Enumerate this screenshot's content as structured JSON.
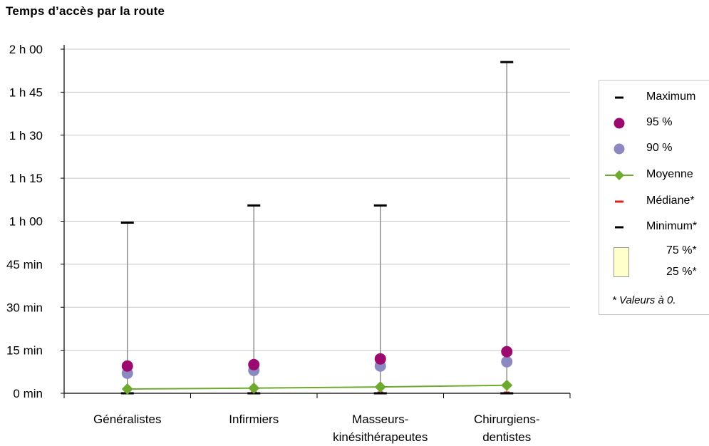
{
  "chart_data": {
    "type": "boxplot-summary",
    "title": "Temps d’accès par la route",
    "y_tick_labels": [
      "0 min",
      "15 min",
      "30 min",
      "45 min",
      "1 h 00",
      "1 h 15",
      "1 h 30",
      "1 h 45",
      "2 h 00"
    ],
    "y_tick_values": [
      0,
      15,
      30,
      45,
      60,
      75,
      90,
      105,
      120
    ],
    "ylim": [
      0,
      120
    ],
    "grid": true,
    "legend_position": "right",
    "categories": [
      "Généralistes",
      "Infirmiers",
      "Masseurs-kinésithérapeutes",
      "Chirurgiens-dentistes"
    ],
    "category_lines": [
      [
        "Généralistes"
      ],
      [
        "Infirmiers"
      ],
      [
        "Masseurs-",
        "kinésithérapeutes"
      ],
      [
        "Chirurgiens-",
        "dentistes"
      ]
    ],
    "series": [
      {
        "name": "Maximum",
        "values": [
          59.5,
          65.5,
          65.5,
          115.5
        ]
      },
      {
        "name": "95 %",
        "values": [
          9.5,
          10.0,
          12.0,
          14.5
        ]
      },
      {
        "name": "90 %",
        "values": [
          7.0,
          8.0,
          9.5,
          11.0
        ]
      },
      {
        "name": "Moyenne",
        "values": [
          1.5,
          1.8,
          2.2,
          2.8
        ]
      },
      {
        "name": "Médiane*",
        "values": [
          0,
          0,
          0,
          0
        ]
      },
      {
        "name": "Minimum*",
        "values": [
          0,
          0,
          0,
          0
        ]
      }
    ],
    "legend": {
      "items": [
        "Maximum",
        "95 %",
        "90 %",
        "Moyenne",
        "Médiane*",
        "Minimum*"
      ],
      "box_top_label": "75 %*",
      "box_bottom_label": "25 %*",
      "note": "* Valeurs à 0."
    },
    "colors": {
      "maximum": "#000000",
      "p95": "#9b0a6e",
      "p90": "#8c88c0",
      "moyenne": "#6eaa2d",
      "mediane": "#e02020",
      "minimum": "#000000",
      "whisker": "#8c8c8c",
      "grid": "#c8c8c8",
      "box": "#ffffcc"
    }
  }
}
